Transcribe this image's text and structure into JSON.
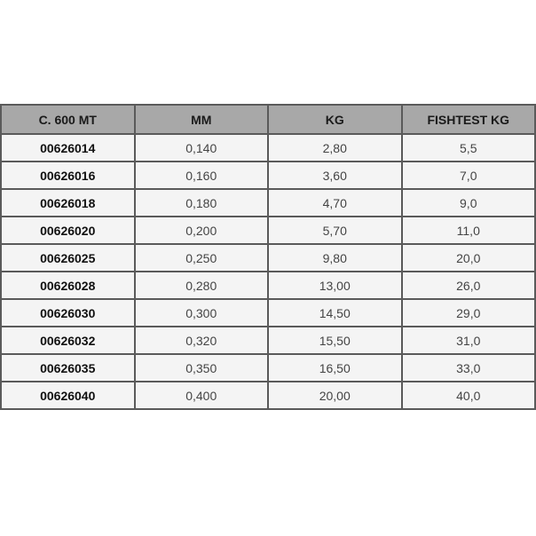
{
  "table": {
    "headers": [
      "C. 600 MT",
      "MM",
      "KG",
      "FISHTEST KG"
    ],
    "rows": [
      [
        "00626014",
        "0,140",
        "2,80",
        "5,5"
      ],
      [
        "00626016",
        "0,160",
        "3,60",
        "7,0"
      ],
      [
        "00626018",
        "0,180",
        "4,70",
        "9,0"
      ],
      [
        "00626020",
        "0,200",
        "5,70",
        "11,0"
      ],
      [
        "00626025",
        "0,250",
        "9,80",
        "20,0"
      ],
      [
        "00626028",
        "0,280",
        "13,00",
        "26,0"
      ],
      [
        "00626030",
        "0,300",
        "14,50",
        "29,0"
      ],
      [
        "00626032",
        "0,320",
        "15,50",
        "31,0"
      ],
      [
        "00626035",
        "0,350",
        "16,50",
        "33,0"
      ],
      [
        "00626040",
        "0,400",
        "20,00",
        "40,0"
      ]
    ]
  }
}
